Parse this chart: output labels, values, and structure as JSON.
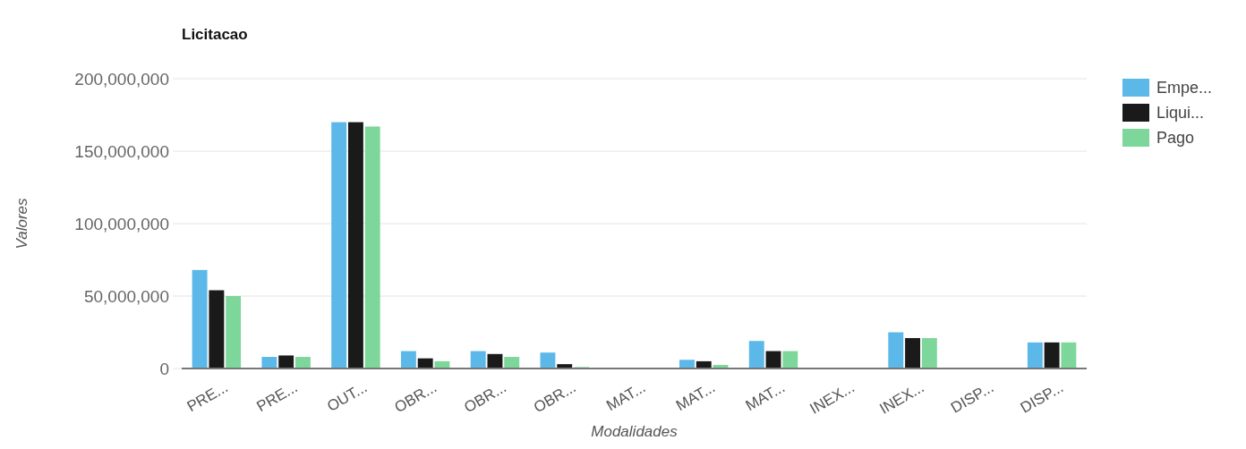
{
  "chart_data": {
    "type": "bar",
    "title": "Licitacao",
    "xlabel": "Modalidades",
    "ylabel": "Valores",
    "categories": [
      "PRE...",
      "PRE...",
      "OUT...",
      "OBR...",
      "OBR...",
      "OBR...",
      "MAT...",
      "MAT...",
      "MAT...",
      "INEX...",
      "INEX...",
      "DISP...",
      "DISP..."
    ],
    "series": [
      {
        "name": "Empe...",
        "color": "#5bb8e8",
        "values": [
          68000000,
          8000000,
          170000000,
          12000000,
          12000000,
          11000000,
          0,
          6000000,
          19000000,
          0,
          25000000,
          0,
          18000000
        ]
      },
      {
        "name": "Liqui...",
        "color": "#1a1a1a",
        "values": [
          54000000,
          9000000,
          170000000,
          7000000,
          10000000,
          3000000,
          0,
          5000000,
          12000000,
          0,
          21000000,
          0,
          18000000
        ]
      },
      {
        "name": "Pago",
        "color": "#7dd69a",
        "values": [
          50000000,
          8000000,
          167000000,
          5000000,
          8000000,
          1000000,
          0,
          2500000,
          12000000,
          0,
          21000000,
          0,
          18000000
        ]
      }
    ],
    "ylim": [
      0,
      200000000
    ],
    "yticks": [
      {
        "value": 0,
        "label": "0"
      },
      {
        "value": 50000000,
        "label": "50,000,000"
      },
      {
        "value": 100000000,
        "label": "100,000,000"
      },
      {
        "value": 150000000,
        "label": "150,000,000"
      },
      {
        "value": 200000000,
        "label": "200,000,000"
      }
    ],
    "grid": "y",
    "legend": "top right"
  }
}
